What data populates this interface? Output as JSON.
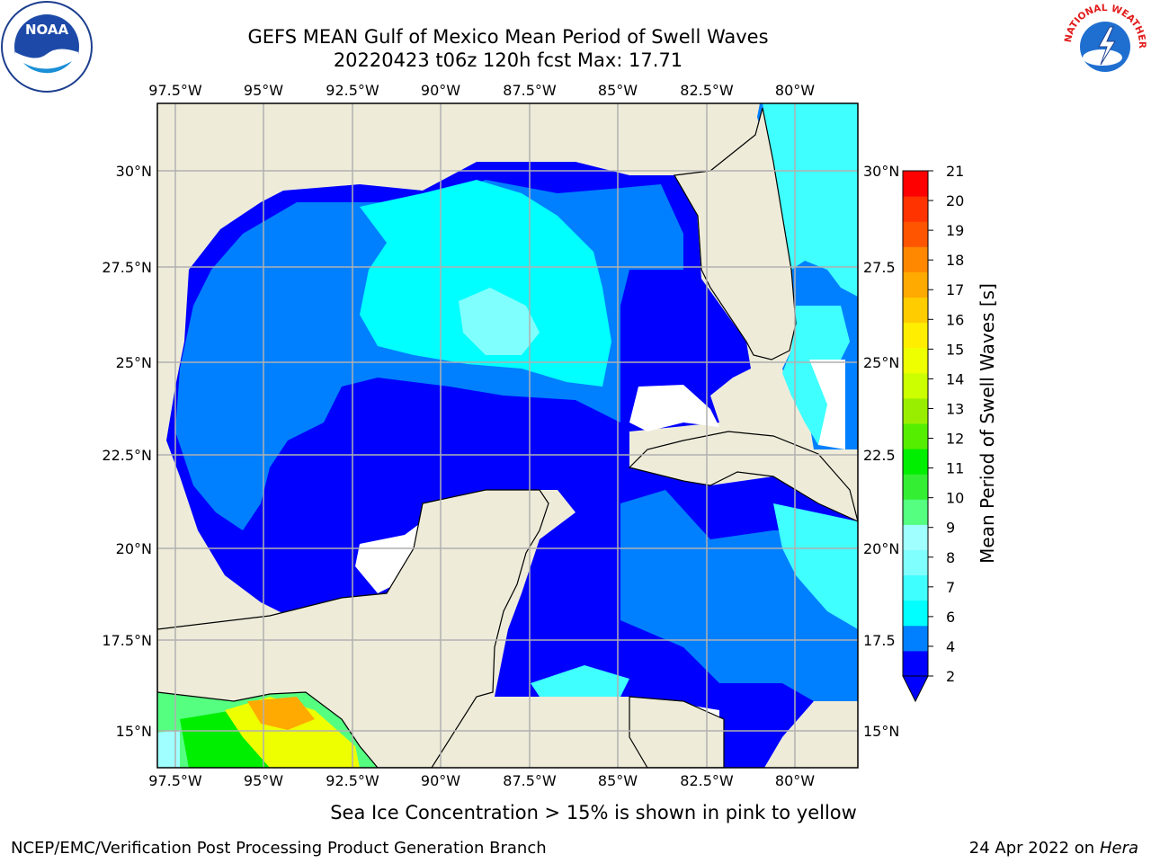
{
  "title": {
    "line1": "GEFS MEAN Gulf of Mexico Mean Period of Swell Waves",
    "line2": "20220423 t06z 120h fcst   Max: 17.71"
  },
  "map": {
    "lon_ticks": [
      "97.5°W",
      "95°W",
      "92.5°W",
      "90°W",
      "87.5°W",
      "85°W",
      "82.5°W",
      "80°W"
    ],
    "lat_ticks": [
      "30°N",
      "27.5°N",
      "25°N",
      "22.5°N",
      "20°N",
      "17.5°N",
      "15°N"
    ],
    "lat_ticks_right": [
      "30°N",
      "27.5",
      "25°N",
      "22.5",
      "20°N",
      "17.5",
      "15°N"
    ],
    "colors": {
      "land": "#eeecd9",
      "gridline": "#b0b0b0",
      "coast": "#000000",
      "no_data": "#ffffff"
    }
  },
  "colorbar": {
    "label": "Mean Period of Swell Waves [s]",
    "ticks": [
      "2",
      "4",
      "6",
      "7",
      "8",
      "9",
      "10",
      "11",
      "12",
      "13",
      "14",
      "15",
      "16",
      "17",
      "18",
      "19",
      "20",
      "21"
    ],
    "colors": [
      "#0000ff",
      "#0080ff",
      "#00ffff",
      "#40ffff",
      "#80ffff",
      "#a0ffff",
      "#55ff80",
      "#33ee33",
      "#00ee00",
      "#55ee00",
      "#99ee00",
      "#ccff00",
      "#eeff00",
      "#ffee00",
      "#ffcc00",
      "#ffaa00",
      "#ff8800",
      "#ff5500",
      "#ff3300",
      "#ff0000"
    ],
    "under_color": "#0000ff"
  },
  "ice_note": "Sea Ice Concentration > 15% is shown in pink to yellow",
  "credit": "NCEP/EMC/Verification Post Processing Product Generation Branch",
  "date_note": {
    "text": "24 Apr 2022 on ",
    "host": "Hera"
  },
  "logos": {
    "noaa": "NOAA",
    "nws_text": "NATIONAL WEATHER SERVICE"
  }
}
